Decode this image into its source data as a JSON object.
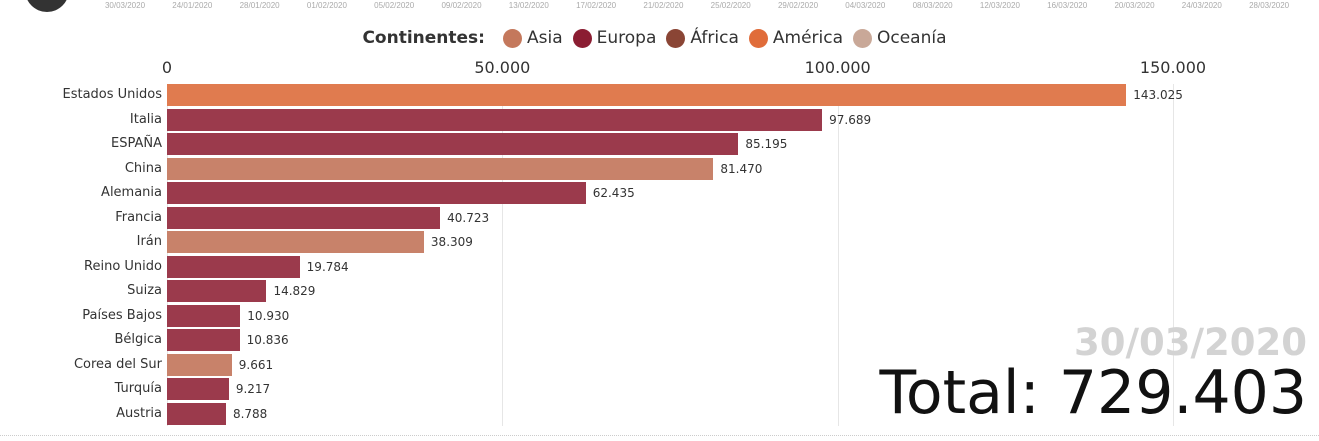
{
  "timeline_dates": [
    "30/03/2020",
    "24/01/2020",
    "28/01/2020",
    "01/02/2020",
    "05/02/2020",
    "09/02/2020",
    "13/02/2020",
    "17/02/2020",
    "21/02/2020",
    "25/02/2020",
    "29/02/2020",
    "04/03/2020",
    "08/03/2020",
    "12/03/2020",
    "16/03/2020",
    "20/03/2020",
    "24/03/2020",
    "28/03/2020"
  ],
  "legend": {
    "title": "Continentes:",
    "items": [
      {
        "label": "Asia",
        "color": "#c4785c"
      },
      {
        "label": "Europa",
        "color": "#8b1d32"
      },
      {
        "label": "África",
        "color": "#8a4535"
      },
      {
        "label": "América",
        "color": "#e06c3a"
      },
      {
        "label": "Oceanía",
        "color": "#c9a898"
      }
    ]
  },
  "chart_data": {
    "type": "bar",
    "orientation": "horizontal",
    "xlim": [
      0,
      150000
    ],
    "x_ticks": [
      {
        "value": 0,
        "label": "0"
      },
      {
        "value": 50000,
        "label": "50.000"
      },
      {
        "value": 100000,
        "label": "100.000"
      },
      {
        "value": 150000,
        "label": "150.000"
      }
    ],
    "categories": [
      "Estados Unidos",
      "Italia",
      "ESPAÑA",
      "China",
      "Alemania",
      "Francia",
      "Irán",
      "Reino Unido",
      "Suiza",
      "Países Bajos",
      "Bélgica",
      "Corea del Sur",
      "Turquía",
      "Austria"
    ],
    "values": [
      143025,
      97689,
      85195,
      81470,
      62435,
      40723,
      38309,
      19784,
      14829,
      10930,
      10836,
      9661,
      9217,
      8788
    ],
    "value_labels": [
      "143.025",
      "97.689",
      "85.195",
      "81.470",
      "62.435",
      "40.723",
      "38.309",
      "19.784",
      "14.829",
      "10.930",
      "10.836",
      "9.661",
      "9.217",
      "8.788"
    ],
    "continents": [
      "América",
      "Europa",
      "Europa",
      "Asia",
      "Europa",
      "Europa",
      "Asia",
      "Europa",
      "Europa",
      "Europa",
      "Europa",
      "Asia",
      "Europa",
      "Europa"
    ],
    "bar_colors": {
      "América": "#e07b4f",
      "Europa": "#9b3a4c",
      "Asia": "#c8826a"
    },
    "grid": true
  },
  "date": "30/03/2020",
  "total": "Total: 729.403"
}
